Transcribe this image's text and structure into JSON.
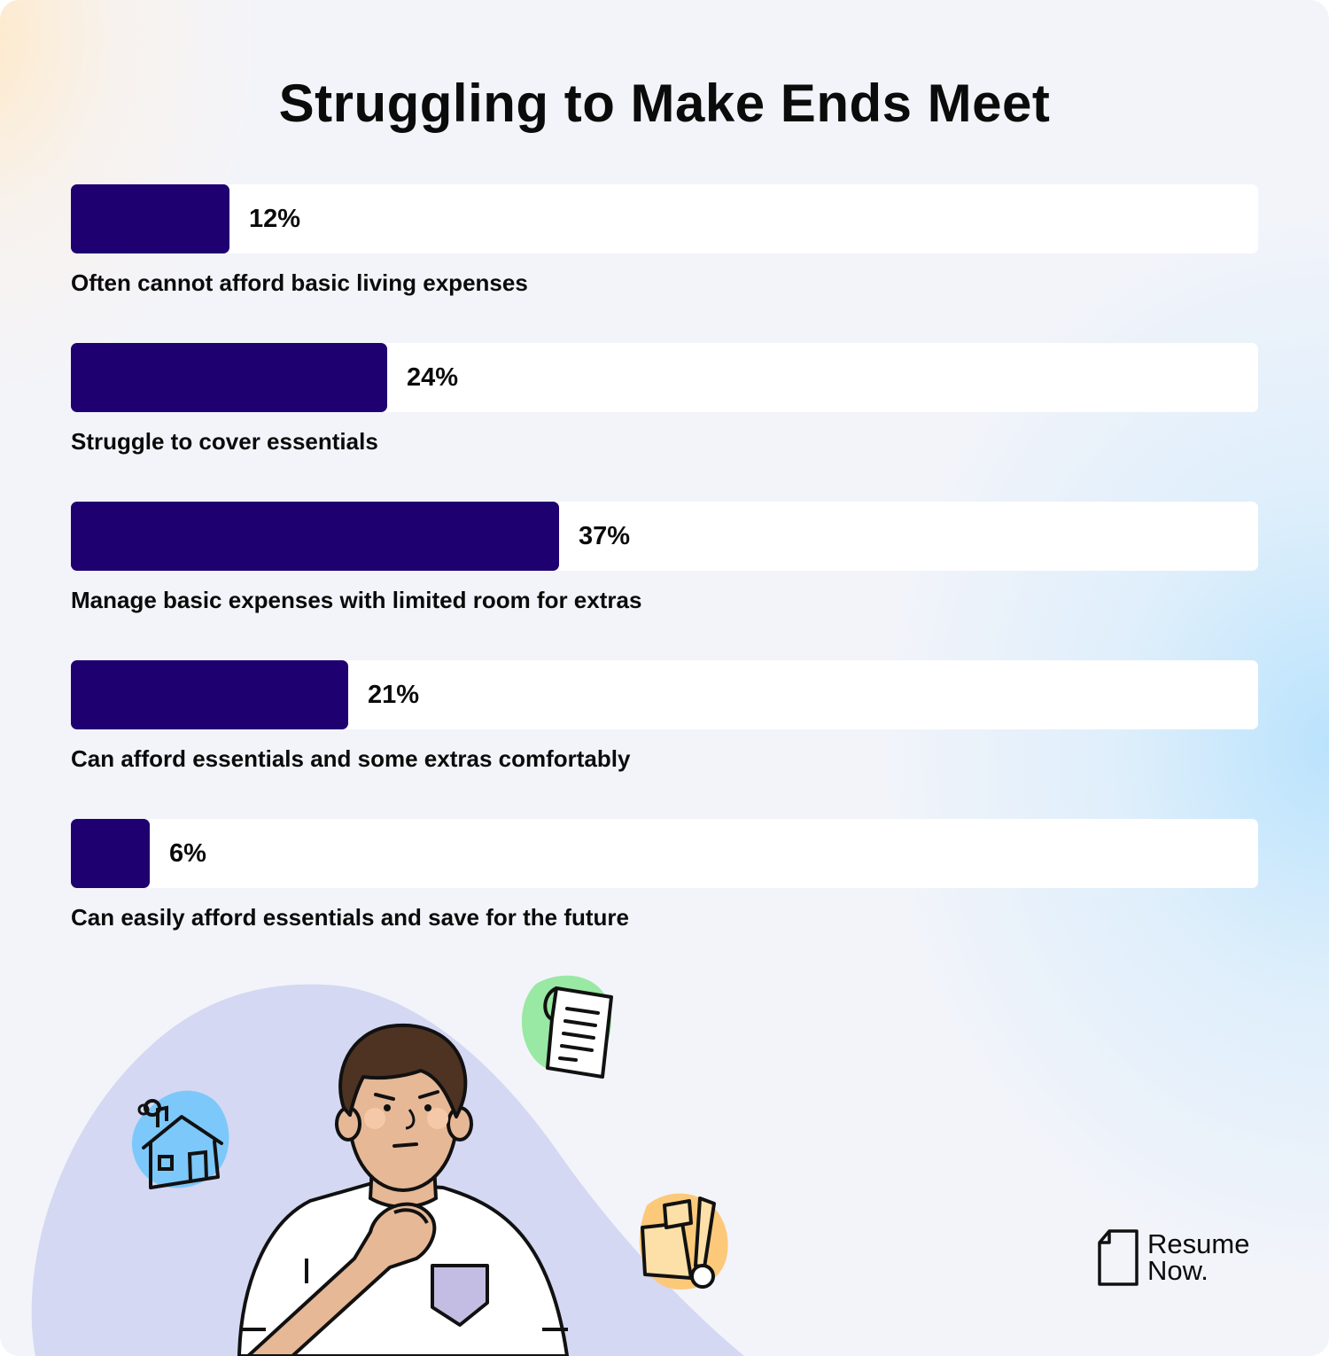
{
  "chart_data": {
    "type": "bar",
    "orientation": "horizontal",
    "title": "Struggling to Make Ends Meet",
    "unit": "%",
    "xlim": [
      0,
      90
    ],
    "categories": [
      "Often cannot afford basic living expenses",
      "Struggle to cover essentials",
      "Manage basic expenses with limited room for extras",
      "Can afford essentials and some extras comfortably",
      "Can easily afford essentials and save for the future"
    ],
    "values": [
      12,
      24,
      37,
      21,
      6
    ],
    "value_labels": [
      "12%",
      "24%",
      "37%",
      "21%",
      "6%"
    ],
    "grid": false,
    "legend": "none"
  },
  "colors": {
    "bar": "#1e0070",
    "track": "#ffffff",
    "background": "#f3f4fa",
    "text": "#0b0b0b"
  },
  "illustration": {
    "icons": [
      "house-icon",
      "receipt-icon",
      "grocery-bag-icon"
    ],
    "figure": "thinking-man"
  },
  "logo": {
    "line1": "Resume",
    "line2": "Now."
  }
}
